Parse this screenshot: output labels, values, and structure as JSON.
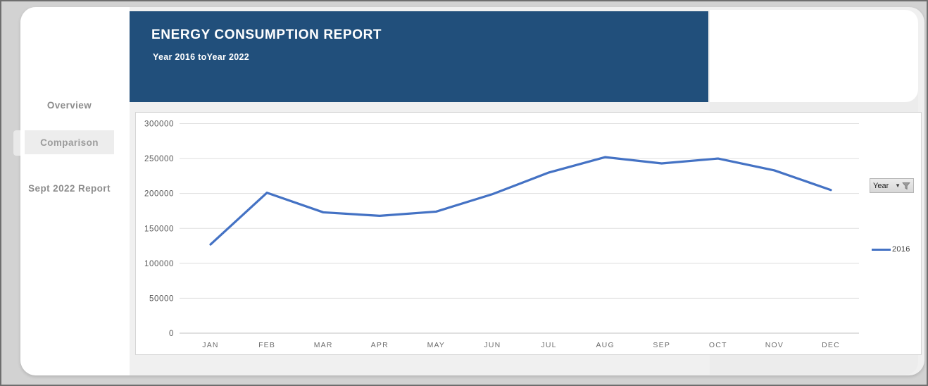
{
  "window": {
    "background": "#d2d2d2"
  },
  "header": {
    "title": "ENERGY CONSUMPTION REPORT",
    "subtitle": "Year 2016 toYear 2022",
    "background_color": "#214f7b",
    "text_color": "#ffffff"
  },
  "sidebar": {
    "items": [
      {
        "label": "Overview",
        "active": false
      },
      {
        "label": "Comparison",
        "active": true
      },
      {
        "label": "Sept 2022 Report",
        "active": false
      }
    ]
  },
  "chart_panel": {
    "filter_button": {
      "label": "Year",
      "icons": [
        "dropdown-arrow-icon",
        "filter-funnel-icon"
      ]
    },
    "legend": {
      "label": "2016",
      "color": "#4472c4",
      "position": "right"
    }
  },
  "chart_data": {
    "type": "line",
    "title": "",
    "xlabel": "",
    "ylabel": "",
    "categories": [
      "JAN",
      "FEB",
      "MAR",
      "APR",
      "MAY",
      "JUN",
      "JUL",
      "AUG",
      "SEP",
      "OCT",
      "NOV",
      "DEC"
    ],
    "series": [
      {
        "name": "2016",
        "color": "#4472c4",
        "values": [
          127000,
          201000,
          173000,
          168000,
          174000,
          199000,
          230000,
          252000,
          243000,
          250000,
          233000,
          205000
        ]
      }
    ],
    "yticks": [
      0,
      50000,
      100000,
      150000,
      200000,
      250000,
      300000
    ],
    "ylim": [
      0,
      300000
    ],
    "grid": true,
    "legend_position": "right"
  }
}
